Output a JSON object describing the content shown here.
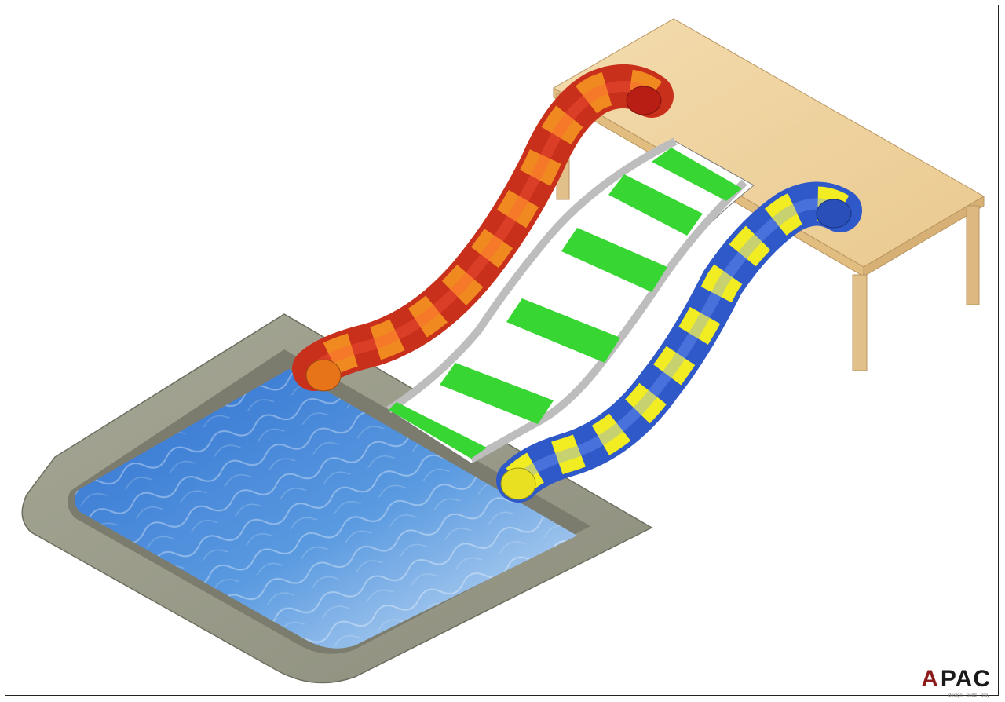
{
  "scene": {
    "subject": "water-slide-installation-render",
    "objects": [
      "platform-table",
      "red-orange-tube-slide",
      "green-white-multilane-slide",
      "blue-yellow-tube-slide",
      "swimming-pool"
    ]
  },
  "colors": {
    "background": "#ffffff",
    "frame_border": "#222222",
    "table_wood": "#f1d7a6",
    "table_edge": "#d8b57a",
    "pool_deck": "#9a9b8a",
    "pool_water": "#4a90d9",
    "slide_red": "#e82020",
    "slide_orange": "#f08a20",
    "slide_green": "#38d633",
    "slide_grey": "#c9c9c9",
    "slide_blue": "#3a6ae0",
    "slide_yellow": "#f2ec22"
  },
  "logo": {
    "prefix": "A",
    "word": "PAC",
    "tagline": "design · build · play"
  }
}
